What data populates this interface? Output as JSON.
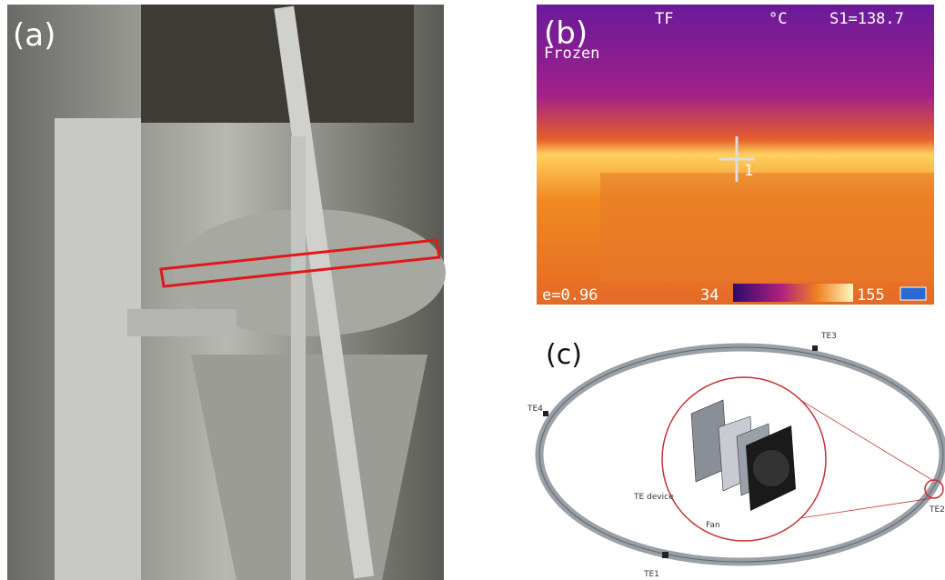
{
  "panels": {
    "a": {
      "label": "(a)"
    },
    "b": {
      "label": "(b)",
      "mode": "TF",
      "unit": "°C",
      "spot": "S1=138.7",
      "status": "Frozen",
      "emissivity": "e=0.96",
      "scale_min": "34",
      "scale_max": "155",
      "cursor": "1"
    },
    "c": {
      "label": "(c)",
      "sensors": [
        "TE1",
        "TE2",
        "TE3",
        "TE4"
      ],
      "device": "TE device",
      "fan": "Fan"
    }
  }
}
